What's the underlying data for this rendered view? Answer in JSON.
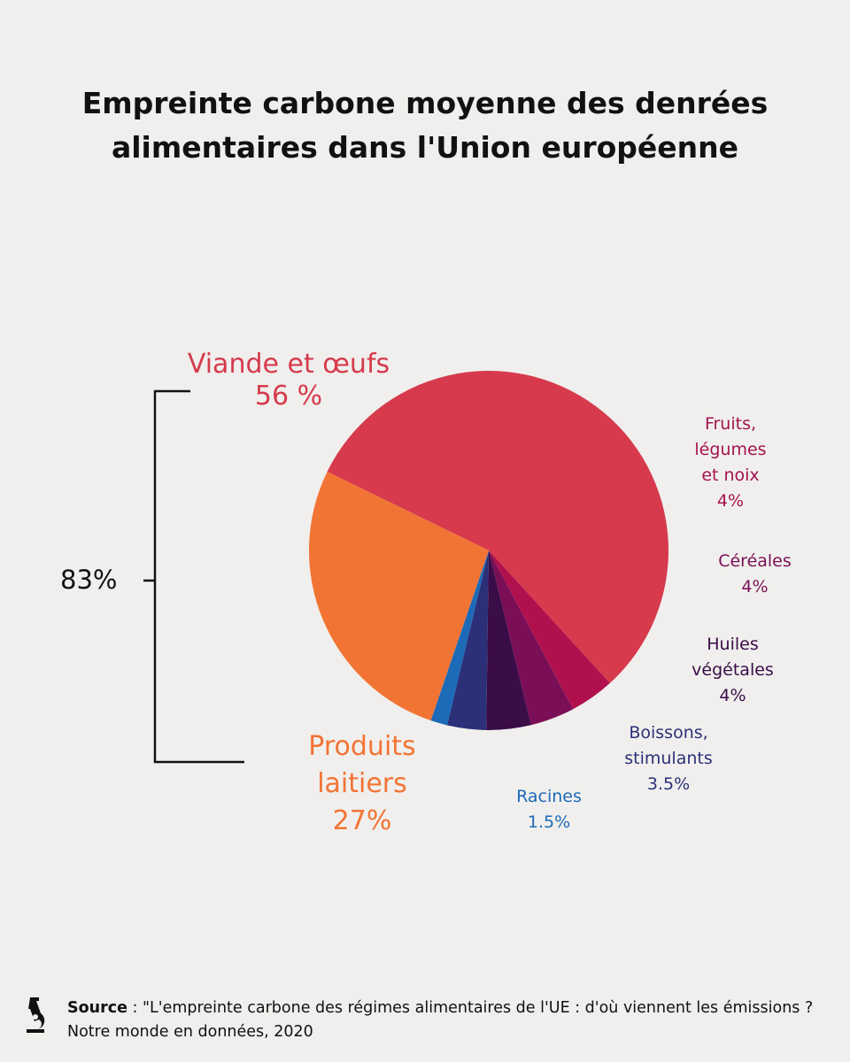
{
  "chart_data": {
    "type": "pie",
    "title_lines": [
      "Empreinte carbone moyenne des denrées",
      "alimentaires dans l'Union européenne"
    ],
    "slices": [
      {
        "id": "viande",
        "label_lines": [
          "Viande et œufs"
        ],
        "value_label": "56 %",
        "value": 56,
        "color": "#d63a4c"
      },
      {
        "id": "fruits",
        "label_lines": [
          "Fruits,",
          "légumes",
          "et noix"
        ],
        "value_label": "4%",
        "value": 4,
        "color": "#b0114e"
      },
      {
        "id": "cereales",
        "label_lines": [
          "Céréales"
        ],
        "value_label": "4%",
        "value": 4,
        "color": "#7a0f57"
      },
      {
        "id": "huiles",
        "label_lines": [
          "Huiles",
          "végétales"
        ],
        "value_label": "4%",
        "value": 4,
        "color": "#3a0c48"
      },
      {
        "id": "boissons",
        "label_lines": [
          "Boissons,",
          "stimulants"
        ],
        "value_label": "3.5%",
        "value": 3.5,
        "color": "#2c3078"
      },
      {
        "id": "racines",
        "label_lines": [
          "Racines"
        ],
        "value_label": "1.5%",
        "value": 1.5,
        "color": "#1c6ab8"
      },
      {
        "id": "laitiers",
        "label_lines": [
          "Produits",
          "laitiers"
        ],
        "value_label": "27%",
        "value": 27,
        "color": "#f27434"
      }
    ],
    "bracket": {
      "label": "83%",
      "covers": [
        "Viande et œufs",
        "Produits laitiers"
      ],
      "value": 83
    },
    "label_colors": {
      "fruits": "#a4124e",
      "cereales": "#7a0f57",
      "huiles": "#3a0c48",
      "boissons": "#2c3078",
      "racines": "#1c6ab8"
    }
  },
  "source": {
    "label": "Source",
    "text": " : \"L'empreinte carbone des régimes alimentaires de l'UE : d'où viennent les émissions ? Notre monde en données, 2020"
  },
  "logo_icon": "microscope-icon"
}
